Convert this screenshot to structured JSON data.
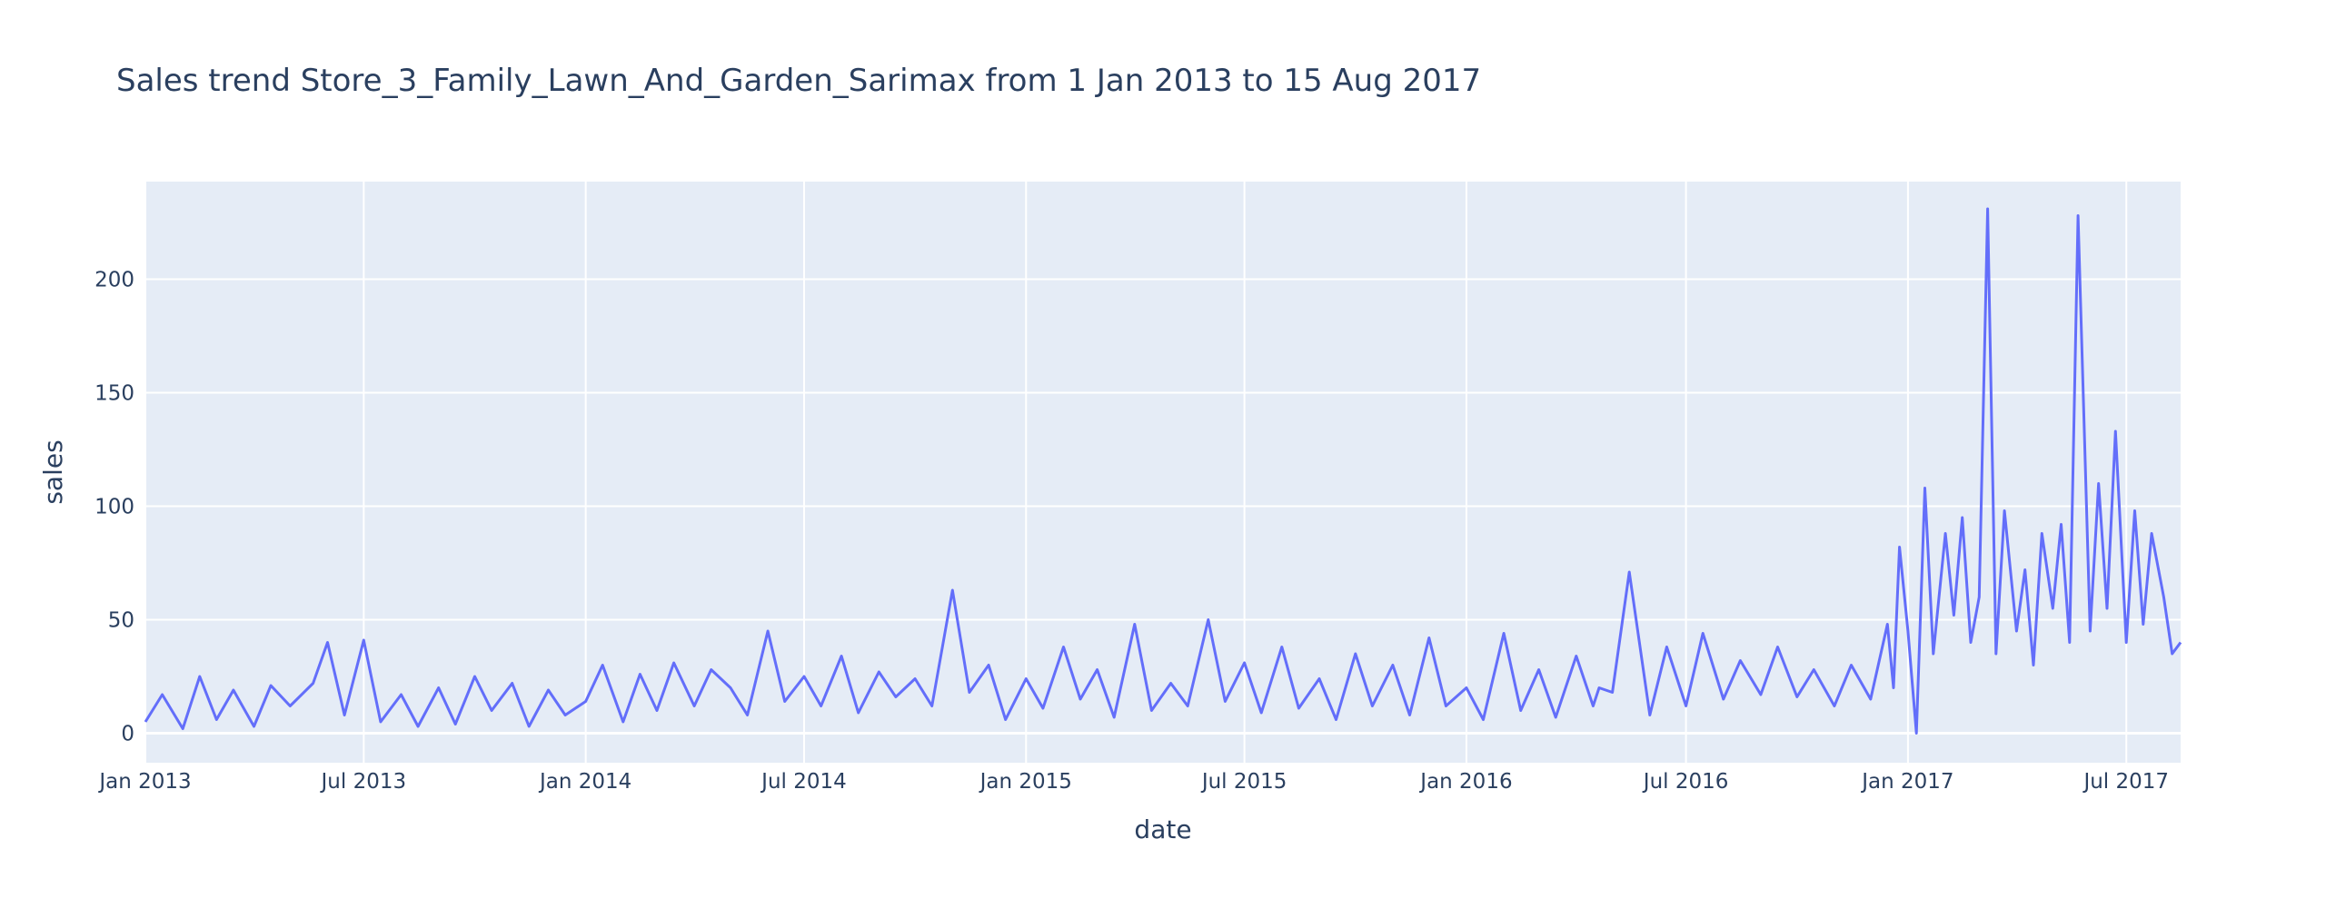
{
  "chart_data": {
    "type": "line",
    "title": "Sales trend Store_3_Family_Lawn_And_Garden_Sarimax from  1 Jan 2013 to 15 Aug 2017",
    "xlabel": "date",
    "ylabel": "sales",
    "x_range": [
      "2013-01-01",
      "2017-08-15"
    ],
    "ylim": [
      -13,
      243
    ],
    "grid": true,
    "legend": "none",
    "colors": {
      "line": "#636efa",
      "plot_bg": "#e5ecf6",
      "grid": "#ffffff",
      "text": "#2a3f5f"
    },
    "x_ticks": [
      {
        "date": "2013-01-01",
        "label": "Jan 2013"
      },
      {
        "date": "2013-07-01",
        "label": "Jul 2013"
      },
      {
        "date": "2014-01-01",
        "label": "Jan 2014"
      },
      {
        "date": "2014-07-01",
        "label": "Jul 2014"
      },
      {
        "date": "2015-01-01",
        "label": "Jan 2015"
      },
      {
        "date": "2015-07-01",
        "label": "Jul 2015"
      },
      {
        "date": "2016-01-01",
        "label": "Jan 2016"
      },
      {
        "date": "2016-07-01",
        "label": "Jul 2016"
      },
      {
        "date": "2017-01-01",
        "label": "Jan 2017"
      },
      {
        "date": "2017-07-01",
        "label": "Jul 2017"
      }
    ],
    "y_ticks": [
      0,
      50,
      100,
      150,
      200
    ],
    "series": [
      {
        "x": [
          "2013-01-01",
          "2013-01-15",
          "2013-02-01",
          "2013-02-15",
          "2013-03-01",
          "2013-03-15",
          "2013-04-01",
          "2013-04-15",
          "2013-05-01",
          "2013-05-20",
          "2013-06-01",
          "2013-06-15",
          "2013-07-01",
          "2013-07-15",
          "2013-08-01",
          "2013-08-15",
          "2013-09-01",
          "2013-09-15",
          "2013-10-01",
          "2013-10-15",
          "2013-11-01",
          "2013-11-15",
          "2013-12-01",
          "2013-12-15",
          "2014-01-01",
          "2014-01-15",
          "2014-02-01",
          "2014-02-15",
          "2014-03-01",
          "2014-03-15",
          "2014-04-01",
          "2014-04-15",
          "2014-05-01",
          "2014-05-15",
          "2014-06-01",
          "2014-06-15",
          "2014-07-01",
          "2014-07-15",
          "2014-08-01",
          "2014-08-15",
          "2014-09-01",
          "2014-09-15",
          "2014-10-01",
          "2014-10-15",
          "2014-11-01",
          "2014-11-15",
          "2014-12-01",
          "2014-12-15",
          "2015-01-01",
          "2015-01-15",
          "2015-02-01",
          "2015-02-15",
          "2015-03-01",
          "2015-03-15",
          "2015-04-01",
          "2015-04-15",
          "2015-05-01",
          "2015-05-15",
          "2015-06-01",
          "2015-06-15",
          "2015-07-01",
          "2015-07-15",
          "2015-08-01",
          "2015-08-15",
          "2015-09-01",
          "2015-09-15",
          "2015-10-01",
          "2015-10-15",
          "2015-11-01",
          "2015-11-15",
          "2015-12-01",
          "2015-12-15",
          "2016-01-01",
          "2016-01-15",
          "2016-02-01",
          "2016-02-15",
          "2016-03-01",
          "2016-03-15",
          "2016-04-01",
          "2016-04-15",
          "2016-04-20",
          "2016-05-01",
          "2016-05-15",
          "2016-06-01",
          "2016-06-15",
          "2016-07-01",
          "2016-07-15",
          "2016-08-01",
          "2016-08-15",
          "2016-09-01",
          "2016-09-15",
          "2016-10-01",
          "2016-10-15",
          "2016-11-01",
          "2016-11-15",
          "2016-12-01",
          "2016-12-15",
          "2016-12-20",
          "2016-12-25",
          "2017-01-01",
          "2017-01-08",
          "2017-01-15",
          "2017-01-22",
          "2017-02-01",
          "2017-02-08",
          "2017-02-15",
          "2017-02-22",
          "2017-03-01",
          "2017-03-08",
          "2017-03-15",
          "2017-03-22",
          "2017-04-01",
          "2017-04-08",
          "2017-04-15",
          "2017-04-22",
          "2017-05-01",
          "2017-05-08",
          "2017-05-15",
          "2017-05-22",
          "2017-06-01",
          "2017-06-08",
          "2017-06-15",
          "2017-06-22",
          "2017-07-01",
          "2017-07-08",
          "2017-07-15",
          "2017-07-22",
          "2017-08-01",
          "2017-08-08",
          "2017-08-15"
        ],
        "y": [
          5,
          17,
          2,
          25,
          6,
          19,
          3,
          21,
          12,
          22,
          40,
          8,
          41,
          5,
          17,
          3,
          20,
          4,
          25,
          10,
          22,
          3,
          19,
          8,
          14,
          30,
          5,
          26,
          10,
          31,
          12,
          28,
          20,
          8,
          45,
          14,
          25,
          12,
          34,
          9,
          27,
          16,
          24,
          12,
          63,
          18,
          30,
          6,
          24,
          11,
          38,
          15,
          28,
          7,
          48,
          10,
          22,
          12,
          50,
          14,
          31,
          9,
          38,
          11,
          24,
          6,
          35,
          12,
          30,
          8,
          42,
          12,
          20,
          6,
          44,
          10,
          28,
          7,
          34,
          12,
          20,
          18,
          71,
          8,
          38,
          12,
          44,
          15,
          32,
          17,
          38,
          16,
          28,
          12,
          30,
          15,
          48,
          20,
          82,
          45,
          0,
          108,
          35,
          88,
          52,
          95,
          40,
          60,
          231,
          35,
          98,
          45,
          72,
          30,
          88,
          55,
          92,
          40,
          228,
          45,
          110,
          55,
          133,
          40,
          98,
          48,
          88,
          60,
          35,
          40
        ]
      }
    ]
  }
}
